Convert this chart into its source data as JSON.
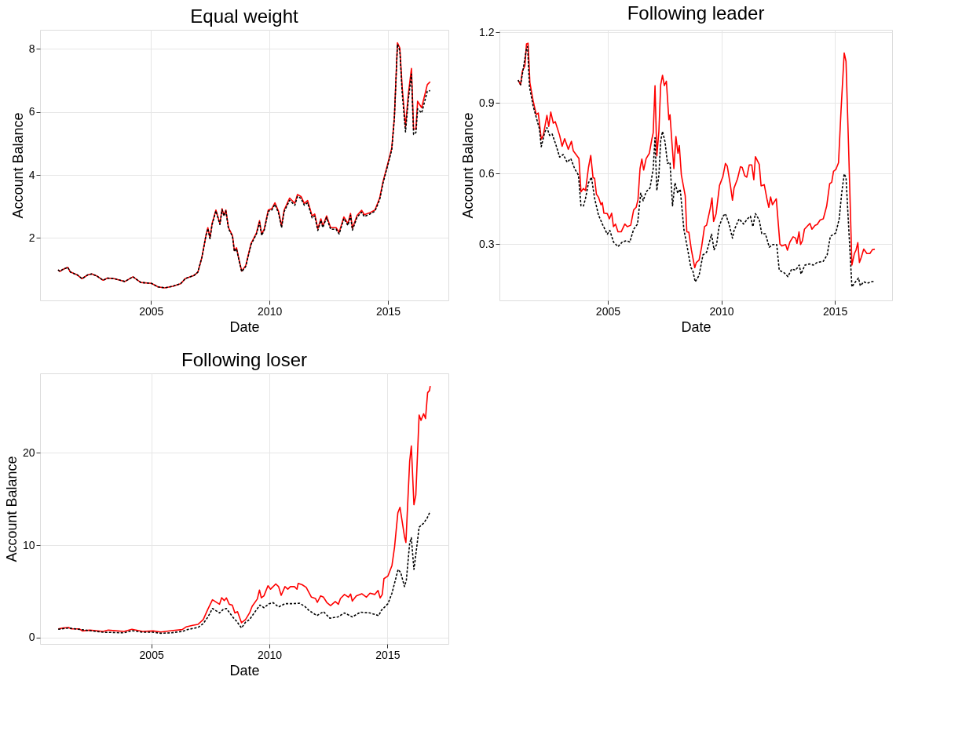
{
  "chart_data": [
    {
      "type": "line",
      "title": "Equal weight",
      "xlabel": "Date",
      "ylabel": "Account Balance",
      "xlim": [
        2000.32,
        2017.55
      ],
      "xticks": [
        2005,
        2010,
        2015
      ],
      "ylim": [
        0.02,
        8.61
      ],
      "yticks": [
        2,
        4,
        6,
        8
      ],
      "grid": true,
      "legend": false,
      "x": [
        2001.08,
        2001.16,
        2001.27,
        2001.49,
        2001.6,
        2001.89,
        2002.09,
        2002.33,
        2002.5,
        2002.73,
        2002.98,
        2003.17,
        2003.45,
        2003.9,
        2004.24,
        2004.57,
        2005.02,
        2005.3,
        2005.58,
        2005.92,
        2006.25,
        2006.46,
        2006.81,
        2006.98,
        2007.15,
        2007.32,
        2007.4,
        2007.49,
        2007.58,
        2007.74,
        2007.91,
        2008.0,
        2008.08,
        2008.16,
        2008.27,
        2008.44,
        2008.52,
        2008.61,
        2008.72,
        2008.83,
        2009.0,
        2009.22,
        2009.45,
        2009.58,
        2009.67,
        2009.78,
        2009.95,
        2010.1,
        2010.23,
        2010.38,
        2010.51,
        2010.62,
        2010.85,
        2011.07,
        2011.18,
        2011.33,
        2011.47,
        2011.61,
        2011.8,
        2011.91,
        2012.04,
        2012.17,
        2012.25,
        2012.41,
        2012.58,
        2012.81,
        2012.94,
        2013.14,
        2013.31,
        2013.42,
        2013.5,
        2013.7,
        2013.89,
        2014.0,
        2014.23,
        2014.45,
        2014.65,
        2014.79,
        2014.97,
        2015.16,
        2015.27,
        2015.4,
        2015.5,
        2015.6,
        2015.74,
        2015.86,
        2015.99,
        2016.08,
        2016.18,
        2016.25,
        2016.42,
        2016.66,
        2016.78
      ],
      "series": [
        {
          "color": "#000000",
          "line_style": "dashed",
          "values": [
            0.99,
            0.94,
            1.0,
            1.07,
            0.92,
            0.83,
            0.71,
            0.83,
            0.86,
            0.79,
            0.66,
            0.73,
            0.71,
            0.62,
            0.77,
            0.59,
            0.56,
            0.45,
            0.42,
            0.47,
            0.55,
            0.72,
            0.81,
            0.92,
            1.39,
            2.08,
            2.3,
            1.98,
            2.43,
            2.86,
            2.43,
            2.9,
            2.7,
            2.86,
            2.3,
            2.05,
            1.57,
            1.66,
            1.27,
            0.93,
            1.1,
            1.79,
            2.13,
            2.5,
            2.08,
            2.25,
            2.85,
            2.89,
            3.07,
            2.8,
            2.33,
            2.84,
            3.2,
            3.04,
            3.32,
            3.26,
            3.04,
            3.12,
            2.64,
            2.7,
            2.24,
            2.56,
            2.33,
            2.65,
            2.28,
            2.28,
            2.13,
            2.62,
            2.4,
            2.72,
            2.25,
            2.67,
            2.82,
            2.68,
            2.76,
            2.85,
            3.22,
            3.74,
            4.25,
            4.8,
            5.8,
            8.15,
            7.95,
            6.6,
            5.37,
            6.4,
            7.2,
            5.29,
            5.35,
            6.1,
            5.97,
            6.66,
            6.68
          ]
        },
        {
          "color": "#ff0000",
          "line_style": "solid",
          "values": [
            0.99,
            0.94,
            1.0,
            1.07,
            0.92,
            0.83,
            0.71,
            0.83,
            0.86,
            0.79,
            0.66,
            0.73,
            0.71,
            0.62,
            0.77,
            0.59,
            0.56,
            0.45,
            0.42,
            0.47,
            0.55,
            0.72,
            0.81,
            0.92,
            1.39,
            2.08,
            2.33,
            2.01,
            2.46,
            2.89,
            2.46,
            2.93,
            2.72,
            2.89,
            2.33,
            2.08,
            1.6,
            1.69,
            1.3,
            0.95,
            1.13,
            1.82,
            2.16,
            2.55,
            2.12,
            2.29,
            2.89,
            2.93,
            3.12,
            2.85,
            2.38,
            2.89,
            3.27,
            3.1,
            3.38,
            3.32,
            3.1,
            3.19,
            2.7,
            2.76,
            2.29,
            2.61,
            2.38,
            2.7,
            2.33,
            2.33,
            2.18,
            2.67,
            2.46,
            2.78,
            2.31,
            2.72,
            2.88,
            2.74,
            2.8,
            2.89,
            3.27,
            3.79,
            4.3,
            4.86,
            5.84,
            8.2,
            8.03,
            6.78,
            5.54,
            6.57,
            7.38,
            5.46,
            5.46,
            6.34,
            6.14,
            6.87,
            6.96
          ]
        }
      ]
    },
    {
      "type": "line",
      "title": "Following leader",
      "xlabel": "Date",
      "ylabel": "Account Balance",
      "xlim": [
        2000.23,
        2017.52
      ],
      "xticks": [
        2005,
        2010,
        2015
      ],
      "ylim": [
        0.062,
        1.21
      ],
      "yticks": [
        0.3,
        0.6,
        0.9,
        1.2
      ],
      "grid": true,
      "legend": false,
      "series": [
        {
          "color": "#000000",
          "line_style": "dashed",
          "x": [
            2001.05,
            2001.16,
            2001.27,
            2001.42,
            2001.47,
            2001.55,
            2001.71,
            2001.88,
            2001.99,
            2002.07,
            2002.22,
            2002.32,
            2002.44,
            2002.55,
            2002.71,
            2002.88,
            2003.04,
            2003.21,
            2003.37,
            2003.54,
            2003.71,
            2003.82,
            2003.93,
            2004.02,
            2004.15,
            2004.28,
            2004.42,
            2004.59,
            2004.76,
            2004.98,
            2005.09,
            2005.25,
            2005.45,
            2005.64,
            2005.81,
            2005.97,
            2006.14,
            2006.31,
            2006.45,
            2006.56,
            2006.69,
            2006.86,
            2007.0,
            2007.08,
            2007.16,
            2007.25,
            2007.33,
            2007.41,
            2007.52,
            2007.63,
            2007.74,
            2007.85,
            2007.96,
            2008.08,
            2008.19,
            2008.35,
            2008.52,
            2008.66,
            2008.74,
            2008.85,
            2009.02,
            2009.19,
            2009.35,
            2009.57,
            2009.68,
            2009.79,
            2009.9,
            2010.07,
            2010.18,
            2010.34,
            2010.49,
            2010.56,
            2010.78,
            2010.98,
            2011.17,
            2011.28,
            2011.39,
            2011.5,
            2011.67,
            2011.78,
            2011.94,
            2012.11,
            2012.27,
            2012.44,
            2012.55,
            2012.77,
            2012.93,
            2013.1,
            2013.27,
            2013.43,
            2013.51,
            2013.68,
            2013.88,
            2014.05,
            2014.22,
            2014.49,
            2014.66,
            2014.8,
            2015.04,
            2015.19,
            2015.3,
            2015.41,
            2015.49,
            2015.6,
            2015.75,
            2015.86,
            2016.04,
            2016.12,
            2016.27,
            2016.43,
            2016.6,
            2016.76
          ],
          "values": [
            0.997,
            0.977,
            1.04,
            1.13,
            1.139,
            0.97,
            0.888,
            0.828,
            0.79,
            0.714,
            0.774,
            0.795,
            0.762,
            0.768,
            0.724,
            0.67,
            0.681,
            0.648,
            0.664,
            0.621,
            0.593,
            0.463,
            0.463,
            0.495,
            0.561,
            0.585,
            0.495,
            0.424,
            0.386,
            0.343,
            0.359,
            0.31,
            0.29,
            0.31,
            0.315,
            0.31,
            0.364,
            0.386,
            0.517,
            0.485,
            0.523,
            0.539,
            0.621,
            0.752,
            0.528,
            0.593,
            0.741,
            0.779,
            0.735,
            0.643,
            0.648,
            0.463,
            0.561,
            0.517,
            0.534,
            0.364,
            0.277,
            0.201,
            0.19,
            0.141,
            0.168,
            0.255,
            0.266,
            0.343,
            0.277,
            0.299,
            0.375,
            0.419,
            0.43,
            0.386,
            0.326,
            0.359,
            0.408,
            0.386,
            0.41,
            0.419,
            0.375,
            0.43,
            0.403,
            0.345,
            0.345,
            0.288,
            0.299,
            0.299,
            0.19,
            0.179,
            0.163,
            0.195,
            0.19,
            0.212,
            0.174,
            0.212,
            0.217,
            0.212,
            0.223,
            0.228,
            0.255,
            0.334,
            0.348,
            0.408,
            0.517,
            0.599,
            0.583,
            0.386,
            0.119,
            0.135,
            0.157,
            0.124,
            0.141,
            0.135,
            0.141,
            0.144
          ]
        },
        {
          "color": "#ff0000",
          "line_style": "solid",
          "x": [
            2001.05,
            2001.16,
            2001.24,
            2001.35,
            2001.42,
            2001.49,
            2001.57,
            2001.71,
            2001.85,
            2001.94,
            2002.07,
            2002.16,
            2002.32,
            2002.4,
            2002.49,
            2002.6,
            2002.69,
            2002.88,
            2002.99,
            2003.1,
            2003.26,
            2003.4,
            2003.48,
            2003.73,
            2003.82,
            2003.93,
            2004.02,
            2004.15,
            2004.25,
            2004.35,
            2004.42,
            2004.5,
            2004.59,
            2004.7,
            2004.76,
            2004.83,
            2004.98,
            2005.07,
            2005.17,
            2005.25,
            2005.34,
            2005.45,
            2005.59,
            2005.75,
            2005.86,
            2006.01,
            2006.14,
            2006.25,
            2006.33,
            2006.42,
            2006.5,
            2006.58,
            2006.69,
            2006.83,
            2006.94,
            2007.0,
            2007.08,
            2007.16,
            2007.25,
            2007.33,
            2007.41,
            2007.49,
            2007.58,
            2007.69,
            2007.74,
            2007.83,
            2007.91,
            2008.0,
            2008.09,
            2008.15,
            2008.24,
            2008.41,
            2008.48,
            2008.57,
            2008.68,
            2008.83,
            2008.9,
            2009.02,
            2009.13,
            2009.26,
            2009.35,
            2009.51,
            2009.59,
            2009.66,
            2009.77,
            2009.92,
            2010.07,
            2010.18,
            2010.26,
            2010.4,
            2010.49,
            2010.56,
            2010.71,
            2010.84,
            2010.92,
            2011.03,
            2011.12,
            2011.23,
            2011.34,
            2011.43,
            2011.5,
            2011.67,
            2011.75,
            2011.89,
            2012.02,
            2012.09,
            2012.17,
            2012.25,
            2012.42,
            2012.58,
            2012.67,
            2012.83,
            2012.91,
            2013.02,
            2013.16,
            2013.27,
            2013.33,
            2013.42,
            2013.49,
            2013.57,
            2013.66,
            2013.9,
            2013.99,
            2014.13,
            2014.22,
            2014.35,
            2014.49,
            2014.64,
            2014.77,
            2014.86,
            2014.94,
            2015.04,
            2015.16,
            2015.27,
            2015.41,
            2015.49,
            2015.6,
            2015.75,
            2015.86,
            2015.93,
            2016.01,
            2016.08,
            2016.16,
            2016.27,
            2016.41,
            2016.54,
            2016.65,
            2016.76
          ],
          "values": [
            0.997,
            0.977,
            1.035,
            1.057,
            1.15,
            1.153,
            0.986,
            0.91,
            0.85,
            0.857,
            0.746,
            0.762,
            0.847,
            0.8,
            0.861,
            0.814,
            0.82,
            0.762,
            0.716,
            0.748,
            0.703,
            0.737,
            0.697,
            0.664,
            0.523,
            0.537,
            0.528,
            0.626,
            0.677,
            0.583,
            0.58,
            0.512,
            0.5,
            0.468,
            0.477,
            0.432,
            0.43,
            0.408,
            0.432,
            0.375,
            0.386,
            0.353,
            0.353,
            0.386,
            0.375,
            0.381,
            0.446,
            0.457,
            0.49,
            0.621,
            0.662,
            0.615,
            0.664,
            0.686,
            0.746,
            0.773,
            0.973,
            0.675,
            0.779,
            0.977,
            1.017,
            0.973,
            0.992,
            0.828,
            0.85,
            0.724,
            0.621,
            0.757,
            0.686,
            0.719,
            0.594,
            0.506,
            0.353,
            0.351,
            0.277,
            0.201,
            0.223,
            0.233,
            0.288,
            0.375,
            0.381,
            0.452,
            0.497,
            0.397,
            0.43,
            0.55,
            0.588,
            0.643,
            0.632,
            0.55,
            0.487,
            0.539,
            0.577,
            0.629,
            0.626,
            0.591,
            0.585,
            0.637,
            0.637,
            0.574,
            0.672,
            0.639,
            0.548,
            0.553,
            0.487,
            0.457,
            0.501,
            0.468,
            0.493,
            0.301,
            0.293,
            0.299,
            0.275,
            0.31,
            0.332,
            0.326,
            0.304,
            0.353,
            0.299,
            0.315,
            0.364,
            0.389,
            0.364,
            0.381,
            0.384,
            0.403,
            0.408,
            0.463,
            0.557,
            0.563,
            0.61,
            0.617,
            0.646,
            0.866,
            1.112,
            1.076,
            0.724,
            0.212,
            0.261,
            0.275,
            0.307,
            0.223,
            0.244,
            0.28,
            0.261,
            0.261,
            0.277,
            0.279
          ]
        }
      ]
    },
    {
      "type": "line",
      "title": "Following loser",
      "xlabel": "Date",
      "ylabel": "Account Balance",
      "xlim": [
        2000.29,
        2017.58
      ],
      "xticks": [
        2005,
        2010,
        2015
      ],
      "ylim": [
        -0.7,
        28.6
      ],
      "yticks": [
        0,
        10,
        20
      ],
      "grid": true,
      "legend": false,
      "series": [
        {
          "color": "#000000",
          "line_style": "dashed",
          "x": [
            2001.06,
            2001.5,
            2002.4,
            2002.96,
            2003.85,
            2004.18,
            2004.63,
            2005.08,
            2005.41,
            2005.86,
            2006.31,
            2006.53,
            2006.98,
            2007.2,
            2007.4,
            2007.59,
            2007.89,
            2008.04,
            2008.18,
            2008.32,
            2008.49,
            2008.6,
            2008.82,
            2008.99,
            2009.16,
            2009.38,
            2009.6,
            2009.77,
            2009.99,
            2010.16,
            2010.39,
            2010.66,
            2010.94,
            2011.28,
            2011.5,
            2011.67,
            2012.01,
            2012.29,
            2012.56,
            2012.9,
            2013.18,
            2013.51,
            2013.85,
            2014.26,
            2014.63,
            2014.74,
            2015.02,
            2015.19,
            2015.45,
            2015.56,
            2015.72,
            2015.8,
            2015.94,
            2016.01,
            2016.12,
            2016.26,
            2016.34,
            2016.53,
            2016.68,
            2016.81
          ],
          "values": [
            0.89,
            1.03,
            0.74,
            0.57,
            0.51,
            0.74,
            0.57,
            0.57,
            0.46,
            0.51,
            0.66,
            0.86,
            1.09,
            1.51,
            2.23,
            3.14,
            2.66,
            3.03,
            3.14,
            2.66,
            2.09,
            1.8,
            1.03,
            1.66,
            1.94,
            2.74,
            3.51,
            3.23,
            3.66,
            3.77,
            3.31,
            3.66,
            3.66,
            3.71,
            3.37,
            2.94,
            2.37,
            2.8,
            2.09,
            2.23,
            2.66,
            2.23,
            2.74,
            2.66,
            2.37,
            2.94,
            3.66,
            4.8,
            7.37,
            7.03,
            5.51,
            6.23,
            10.23,
            10.8,
            7.37,
            10.23,
            11.94,
            12.37,
            12.94,
            13.66
          ]
        },
        {
          "color": "#ff0000",
          "line_style": "solid",
          "x": [
            2001.06,
            2001.28,
            2001.5,
            2001.61,
            2001.95,
            2002.08,
            2002.4,
            2002.96,
            2003.18,
            2003.85,
            2004.18,
            2004.63,
            2005.08,
            2005.41,
            2005.86,
            2006.31,
            2006.47,
            2006.75,
            2006.98,
            2007.2,
            2007.4,
            2007.59,
            2007.89,
            2007.98,
            2008.09,
            2008.18,
            2008.3,
            2008.43,
            2008.54,
            2008.65,
            2008.82,
            2008.99,
            2009.16,
            2009.27,
            2009.49,
            2009.58,
            2009.66,
            2009.77,
            2009.94,
            2010.05,
            2010.27,
            2010.39,
            2010.5,
            2010.66,
            2010.78,
            2010.89,
            2011.06,
            2011.17,
            2011.22,
            2011.39,
            2011.56,
            2011.78,
            2011.95,
            2012.03,
            2012.17,
            2012.29,
            2012.43,
            2012.59,
            2012.79,
            2012.92,
            2013.01,
            2013.18,
            2013.35,
            2013.44,
            2013.51,
            2013.68,
            2013.91,
            2014.11,
            2014.26,
            2014.46,
            2014.6,
            2014.69,
            2014.78,
            2014.85,
            2015.02,
            2015.19,
            2015.3,
            2015.44,
            2015.53,
            2015.72,
            2015.78,
            2015.94,
            2016.01,
            2016.12,
            2016.2,
            2016.34,
            2016.42,
            2016.53,
            2016.61,
            2016.7,
            2016.78,
            2016.81
          ],
          "values": [
            0.94,
            1.03,
            1.09,
            0.94,
            0.94,
            0.71,
            0.8,
            0.66,
            0.8,
            0.66,
            0.89,
            0.66,
            0.71,
            0.6,
            0.74,
            0.86,
            1.14,
            1.31,
            1.43,
            1.94,
            3.09,
            4.09,
            3.6,
            4.31,
            4.0,
            4.29,
            3.6,
            3.51,
            2.66,
            2.8,
            1.6,
            1.94,
            2.66,
            3.37,
            4.17,
            5.14,
            4.29,
            4.51,
            5.6,
            5.23,
            5.8,
            5.51,
            4.57,
            5.51,
            5.23,
            5.51,
            5.51,
            5.23,
            5.86,
            5.71,
            5.43,
            4.37,
            4.23,
            3.8,
            4.51,
            4.37,
            3.8,
            3.46,
            3.89,
            3.6,
            4.23,
            4.66,
            4.37,
            4.71,
            3.94,
            4.51,
            4.74,
            4.37,
            4.8,
            4.66,
            5.09,
            4.29,
            4.66,
            6.37,
            6.66,
            7.8,
            9.8,
            13.51,
            14.09,
            10.94,
            10.29,
            19.09,
            20.74,
            14.37,
            15.43,
            24.09,
            23.51,
            24.23,
            23.71,
            26.51,
            26.74,
            27.23
          ]
        }
      ]
    }
  ]
}
